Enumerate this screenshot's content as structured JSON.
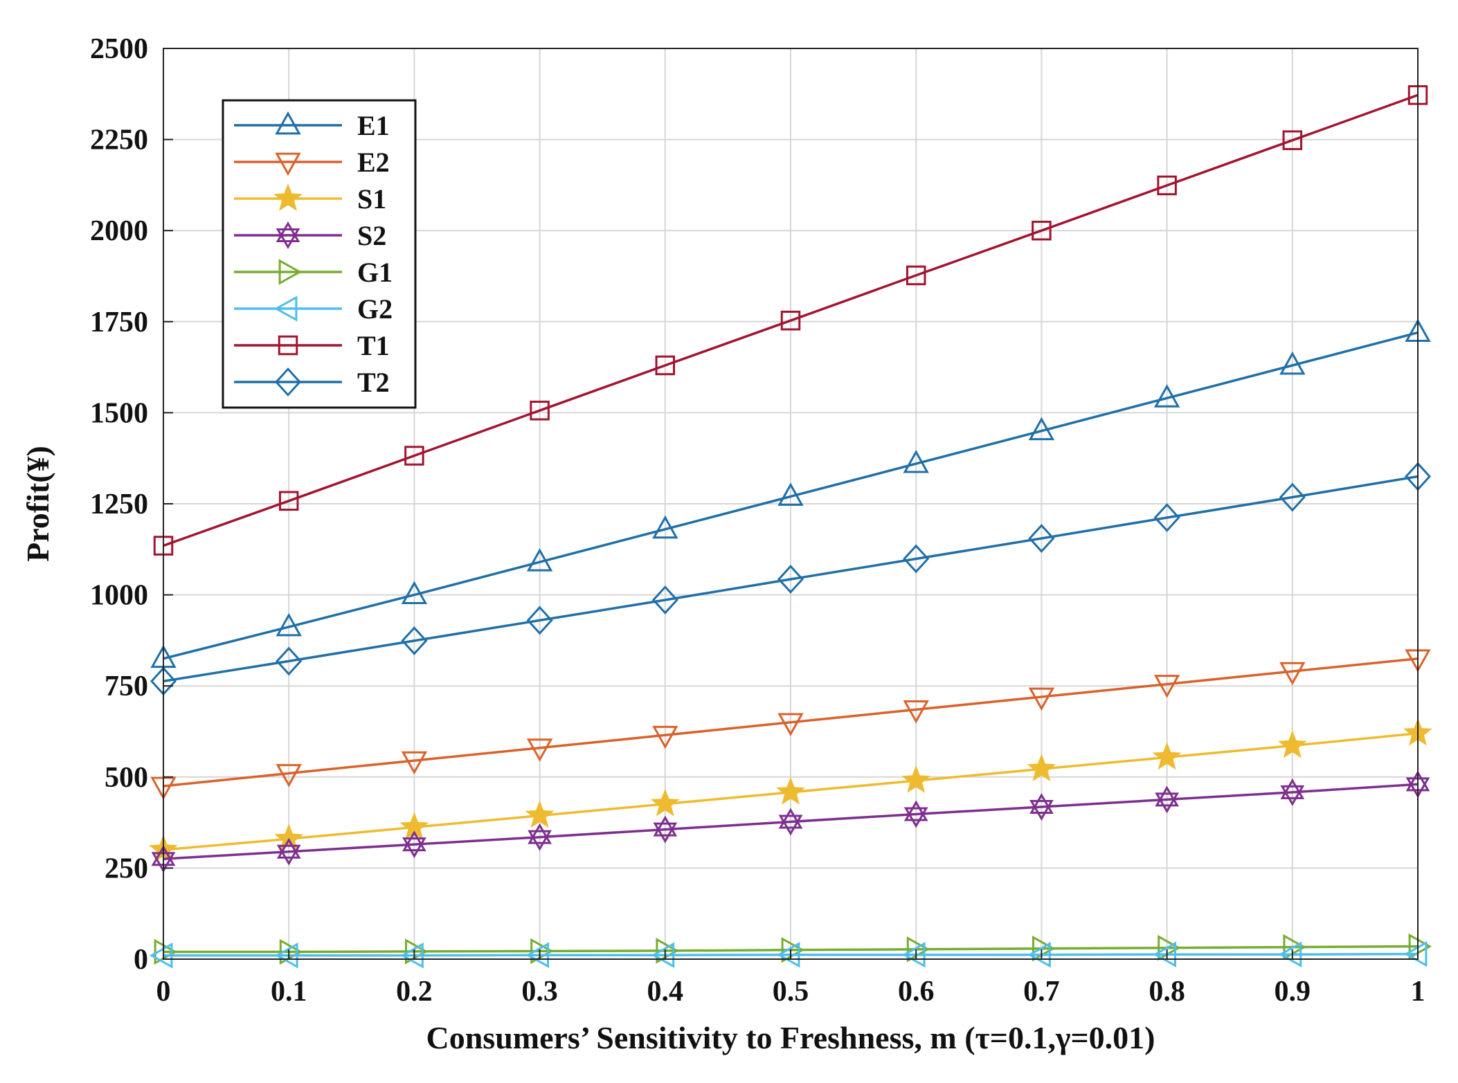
{
  "chart_data": {
    "type": "line",
    "title": "",
    "xlabel": "Consumers’ Sensitivity to Freshness, m (τ=0.1,γ=0.01)",
    "ylabel": "Profit(¥)",
    "xlim": [
      0,
      1
    ],
    "ylim": [
      0,
      2500
    ],
    "grid": true,
    "legend_position": "top-left",
    "x": [
      0,
      0.1,
      0.2,
      0.3,
      0.4,
      0.5,
      0.6,
      0.7,
      0.8,
      0.9,
      1
    ],
    "x_tick_labels": [
      "0",
      "0.1",
      "0.2",
      "0.3",
      "0.4",
      "0.5",
      "0.6",
      "0.7",
      "0.8",
      "0.9",
      "1"
    ],
    "y_ticks": [
      0,
      250,
      500,
      750,
      1000,
      1250,
      1500,
      1750,
      2000,
      2250,
      2500
    ],
    "y_tick_labels": [
      "0",
      "250",
      "500",
      "750",
      "1000",
      "1250",
      "1500",
      "1750",
      "2000",
      "2250",
      "2500"
    ],
    "series": [
      {
        "name": "E1",
        "color": "#1f6fa8",
        "marker": "triangle-up",
        "values": [
          825,
          912,
          1000,
          1090,
          1180,
          1270,
          1360,
          1450,
          1540,
          1630,
          1720
        ]
      },
      {
        "name": "E2",
        "color": "#d9622b",
        "marker": "triangle-down",
        "values": [
          475,
          510,
          545,
          580,
          615,
          650,
          685,
          720,
          755,
          790,
          825
        ]
      },
      {
        "name": "S1",
        "color": "#eebb30",
        "marker": "star",
        "values": [
          300,
          330,
          362,
          394,
          426,
          458,
          490,
          522,
          554,
          586,
          620
        ]
      },
      {
        "name": "S2",
        "color": "#7e2f8e",
        "marker": "hexagram",
        "values": [
          275,
          295,
          315,
          335,
          356,
          377,
          398,
          418,
          438,
          458,
          480
        ]
      },
      {
        "name": "G1",
        "color": "#77ac30",
        "marker": "triangle-right",
        "values": [
          20,
          20,
          21,
          22,
          23,
          25,
          27,
          29,
          31,
          33,
          35
        ]
      },
      {
        "name": "G2",
        "color": "#4dbeee",
        "marker": "triangle-left",
        "values": [
          10,
          10,
          10,
          11,
          11,
          12,
          12,
          12,
          13,
          13,
          14
        ]
      },
      {
        "name": "T1",
        "color": "#a2142f",
        "marker": "square",
        "values": [
          1135,
          1258,
          1382,
          1506,
          1630,
          1753,
          1877,
          2000,
          2124,
          2248,
          2372
        ]
      },
      {
        "name": "T2",
        "color": "#1f6fa8",
        "marker": "diamond",
        "values": [
          763,
          818,
          874,
          930,
          986,
          1043,
          1099,
          1155,
          1212,
          1268,
          1325
        ]
      }
    ]
  }
}
